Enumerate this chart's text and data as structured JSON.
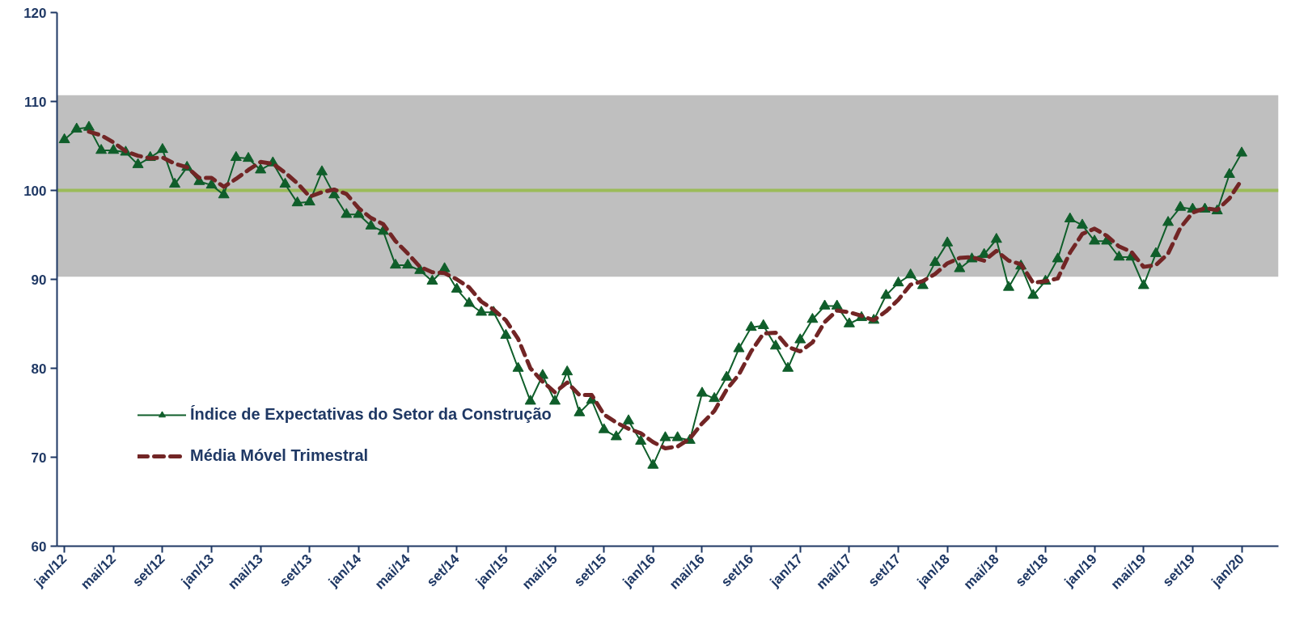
{
  "chart_data": {
    "type": "line",
    "categories": [
      "jan/12",
      null,
      null,
      null,
      "mai/12",
      null,
      null,
      null,
      "set/12",
      null,
      null,
      null,
      "jan/13",
      null,
      null,
      null,
      "mai/13",
      null,
      null,
      null,
      "set/13",
      null,
      null,
      null,
      "jan/14",
      null,
      null,
      null,
      "mai/14",
      null,
      null,
      null,
      "set/14",
      null,
      null,
      null,
      "jan/15",
      null,
      null,
      null,
      "mai/15",
      null,
      null,
      null,
      "set/15",
      null,
      null,
      null,
      "jan/16",
      null,
      null,
      null,
      "mai/16",
      null,
      null,
      null,
      "set/16",
      null,
      null,
      null,
      "jan/17",
      null,
      null,
      null,
      "mai/17",
      null,
      null,
      null,
      "set/17",
      null,
      null,
      null,
      "jan/18",
      null,
      null,
      null,
      "mai/18",
      null,
      null,
      null,
      "set/18",
      null,
      null,
      null,
      "jan/19",
      null,
      null,
      null,
      "mai/19",
      null,
      null,
      null,
      "set/19",
      null,
      null,
      null,
      "jan/20"
    ],
    "series": [
      {
        "name": "Índice de Expectativas do Setor da Construção",
        "color": "#0f5e2a",
        "marker": "triangle",
        "line_style": "solid",
        "values": [
          105.7,
          106.9,
          107.1,
          104.5,
          104.5,
          104.3,
          102.9,
          103.7,
          104.6,
          100.7,
          102.6,
          101.0,
          100.6,
          99.5,
          103.7,
          103.6,
          102.3,
          103.1,
          100.7,
          98.6,
          98.7,
          102.1,
          99.5,
          97.3,
          97.3,
          96.0,
          95.4,
          91.6,
          91.6,
          91.0,
          89.8,
          91.2,
          88.9,
          87.3,
          86.3,
          86.3,
          83.7,
          80.0,
          76.3,
          79.2,
          76.3,
          79.6,
          75.0,
          76.4,
          73.1,
          72.3,
          74.1,
          71.8,
          69.1,
          72.2,
          72.2,
          71.9,
          77.2,
          76.6,
          79.0,
          82.2,
          84.6,
          84.8,
          82.5,
          80.0,
          83.2,
          85.5,
          87.0,
          87.0,
          85.0,
          85.7,
          85.4,
          88.2,
          89.6,
          90.5,
          89.3,
          91.9,
          94.1,
          91.2,
          92.3,
          92.8,
          94.5,
          89.1,
          91.5,
          88.2,
          89.8,
          92.3,
          96.8,
          96.1,
          94.3,
          94.3,
          92.5,
          92.5,
          89.3,
          92.9,
          96.4,
          98.1,
          97.9,
          97.9,
          97.7,
          101.8,
          104.2
        ]
      },
      {
        "name": "Média Móvel Trimestral",
        "color": "#722525",
        "marker": "none",
        "line_style": "dashed",
        "values": [
          null,
          null,
          106.6,
          106.2,
          105.4,
          104.4,
          103.9,
          103.6,
          103.7,
          103.0,
          102.6,
          101.4,
          101.4,
          100.4,
          101.3,
          102.3,
          103.2,
          103.0,
          102.0,
          100.8,
          99.3,
          99.8,
          100.1,
          99.6,
          98.0,
          96.9,
          96.2,
          94.3,
          92.9,
          91.4,
          90.8,
          90.7,
          90.0,
          89.1,
          87.5,
          86.6,
          85.4,
          83.3,
          80.0,
          78.5,
          77.3,
          78.4,
          77.0,
          77.0,
          74.8,
          73.9,
          73.2,
          72.7,
          71.7,
          71.0,
          71.2,
          72.1,
          73.8,
          75.2,
          77.6,
          79.3,
          81.9,
          83.9,
          84.0,
          82.4,
          81.9,
          82.9,
          85.2,
          86.5,
          86.3,
          85.9,
          85.4,
          86.4,
          87.7,
          89.4,
          89.8,
          90.6,
          91.8,
          92.4,
          92.5,
          92.1,
          93.2,
          92.1,
          91.7,
          89.6,
          89.8,
          90.1,
          93.0,
          95.1,
          95.7,
          94.9,
          93.7,
          93.1,
          91.4,
          91.6,
          92.9,
          95.8,
          97.5,
          98.0,
          97.8,
          99.1,
          101.2
        ]
      }
    ],
    "ylim": [
      60,
      120
    ],
    "yticks": [
      60,
      70,
      80,
      90,
      100,
      110,
      120
    ],
    "ref_lines": [
      {
        "axis": "y",
        "value": 100,
        "color": "#9bbb59",
        "line_style": "solid"
      }
    ],
    "bands": [
      {
        "axis": "y",
        "from": 90.3,
        "to": 110.7,
        "color": "#bfbfbf"
      }
    ],
    "legend": "bottom left"
  }
}
